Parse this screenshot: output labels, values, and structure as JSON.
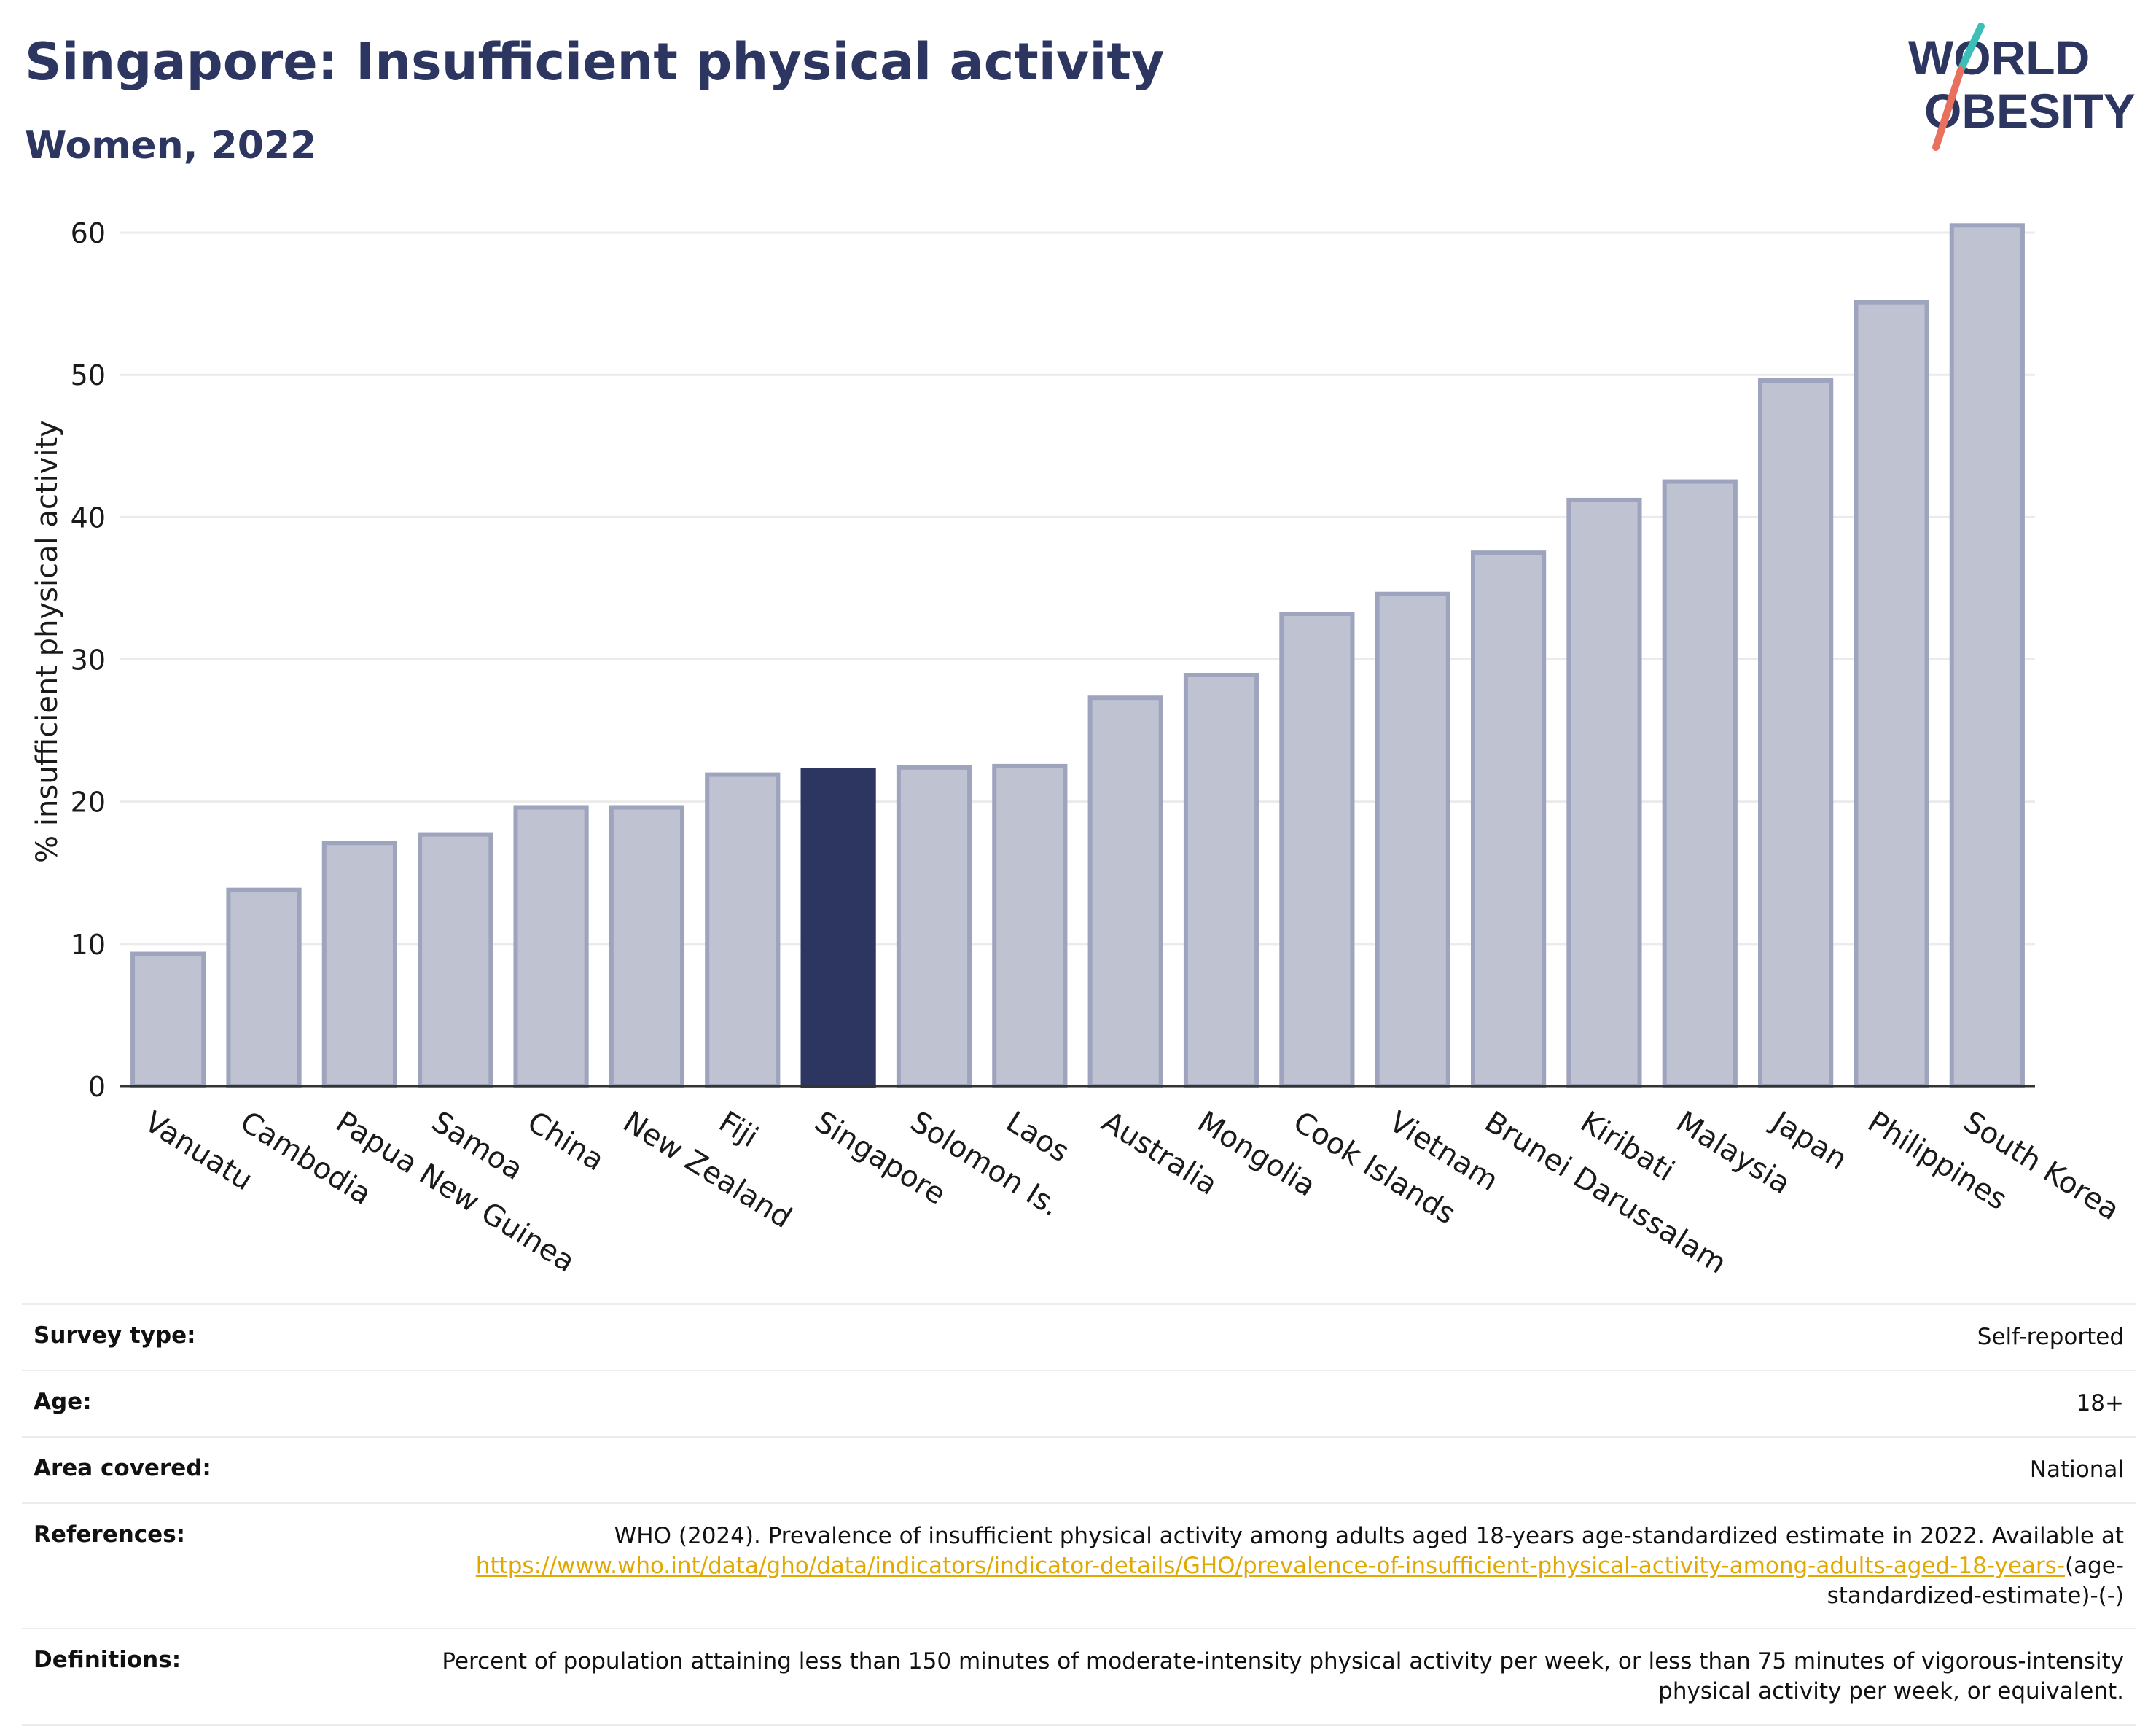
{
  "header": {
    "title": "Singapore: Insufficient physical activity",
    "subtitle": "Women, 2022"
  },
  "logo": {
    "line1": "WORLD",
    "line2": "OBESITY"
  },
  "colors": {
    "highlight": "#2c3660",
    "bar": "#bfc2d1",
    "bar_stroke": "#9ea4bd",
    "grid": "#ebebeb",
    "accent_text": "#2c3660",
    "link": "#e0a800"
  },
  "chart_data": {
    "type": "bar",
    "ylabel": "% insufficient physical activity",
    "ylim": [
      0,
      62
    ],
    "yticks": [
      0,
      10,
      20,
      30,
      40,
      50,
      60
    ],
    "grid": "horizontal",
    "highlight": "Singapore",
    "categories": [
      "Vanuatu",
      "Cambodia",
      "Papua New Guinea",
      "Samoa",
      "China",
      "New Zealand",
      "Fiji",
      "Singapore",
      "Solomon Is.",
      "Laos",
      "Australia",
      "Mongolia",
      "Cook Islands",
      "Vietnam",
      "Brunei Darussalam",
      "Kiribati",
      "Malaysia",
      "Japan",
      "Philippines",
      "South Korea"
    ],
    "values": [
      9.3,
      13.8,
      17.1,
      17.7,
      19.6,
      19.6,
      21.9,
      22.2,
      22.4,
      22.5,
      27.3,
      28.9,
      33.2,
      34.6,
      37.5,
      41.2,
      42.5,
      49.6,
      55.1,
      60.5
    ]
  },
  "meta": [
    {
      "key": "Survey type:",
      "value": "Self-reported"
    },
    {
      "key": "Age:",
      "value": "18+"
    },
    {
      "key": "Area covered:",
      "value": "National"
    },
    {
      "key": "References:",
      "value": "WHO (2024). Prevalence of insufficient physical activity among adults aged 18-years age-standardized estimate in 2022. Available at",
      "link": "https://www.who.int/data/gho/data/indicators/indicator-details/GHO/prevalence-of-insufficient-physical-activity-among-adults-aged-18-years-",
      "suffix": "(age-standardized-estimate)-(-)"
    },
    {
      "key": "Definitions:",
      "value": "Percent of population attaining less than 150 minutes of moderate-intensity physical activity per week, or less than 75 minutes of vigorous-intensity physical activity per week, or equivalent."
    }
  ]
}
